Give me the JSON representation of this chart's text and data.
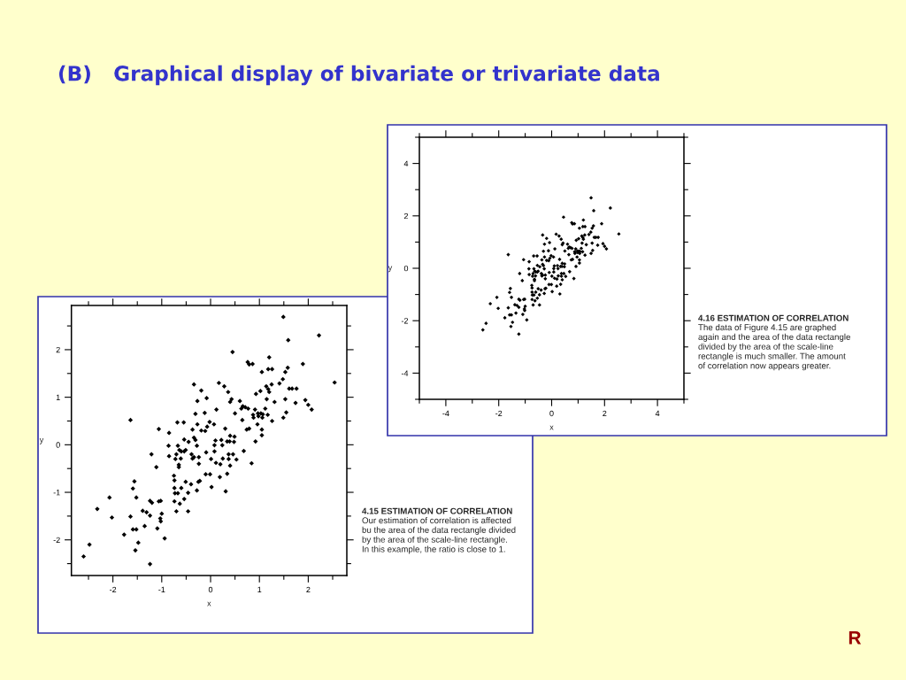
{
  "chart_data": [
    {
      "type": "scatter",
      "title": "(B)   Graphical display of bivariate or trivariate data",
      "xlabel": "x",
      "ylabel": "y",
      "color": "#000000",
      "marker": "diamond",
      "x": [
        -0.34,
        -0.19,
        -0.27,
        -0.08,
        -0.31,
        -0.12,
        -1.64,
        -1.06,
        -0.85,
        -0.68,
        -0.55,
        -0.27,
        -0.02,
        0.07,
        -0.07,
        -0.19,
        -0.11,
        -0.37,
        -0.54,
        -0.45,
        -0.34,
        -0.31,
        -0.86,
        -0.67,
        0.12,
        0.1,
        1.49,
        2.22,
        1.59,
        0.45,
        1.2,
        0.76,
        0.79,
        0.86,
        1.89,
        1.18,
        1.26,
        1.58,
        1.05,
        1.53,
        1.48,
        1.41,
        2.54,
        0.17,
        0.28,
        0.36,
        1.25,
        1.14,
        1.18,
        1.2,
        1.02,
        0.93,
        1.61,
        1.67,
        1.76,
        0.43,
        0.4,
        0.6,
        1.15,
        1.31,
        1.53,
        1.74,
        1.94,
        2.0,
        2.07,
        0.66,
        0.71,
        0.63,
        0.77,
        0.91,
        1.12,
        0.5,
        0.97,
        1.03,
        1.07,
        1.17,
        0.87,
        1.55,
        0.88,
        0.98,
        1.06,
        1.49,
        0.65,
        1.26,
        0.96,
        0.74,
        0.79,
        0.3,
        1.05,
        0.4,
        0.49,
        1.05,
        0.22,
        0.34,
        0.39,
        0.48,
        0.92,
        0.08,
        0.24,
        -0.28,
        -0.64,
        -0.6,
        -0.54,
        -0.51,
        -0.7,
        -0.72,
        -0.61,
        -0.39,
        -0.34,
        -0.37,
        -0.24,
        -0.09,
        0.01,
        -0.85,
        -1.21,
        -1.11,
        -0.65,
        -0.65,
        -0.24,
        -0.1,
        -0.01,
        -0.75,
        -0.74,
        -0.51,
        -0.4,
        -0.25,
        -0.22,
        0.02,
        -0.74,
        -0.6,
        -0.73,
        -0.67,
        -0.46,
        -0.28,
        -0.54,
        -0.74,
        -0.63,
        -0.7,
        -0.46,
        -1.56,
        -1.59,
        -1.52,
        -2.07,
        -2.32,
        -2.02,
        -1.64,
        -1.39,
        -1.31,
        -1.24,
        -1.2,
        -1.06,
        -1.02,
        -1.24,
        -1.0,
        -1.03,
        -1.02,
        -1.35,
        -1.09,
        -1.59,
        -1.52,
        -1.77,
        -0.94,
        -1.48,
        -2.48,
        -1.54,
        -2.6,
        -1.24,
        0.08,
        0.11,
        0.2,
        0.25,
        0.37,
        0.37,
        0.46,
        0.53,
        0.4,
        0.68,
        0.84,
        0.19,
        0.34,
        0.31
      ],
      "values": [
        1.27,
        1.14,
        0.92,
        0.98,
        0.65,
        0.67,
        0.52,
        0.33,
        0.25,
        0.47,
        0.47,
        0.43,
        0.48,
        0.43,
        0.38,
        0.3,
        0.29,
        0.32,
        0.11,
        0.06,
        0.15,
        0.1,
        -0.02,
        -0.02,
        0.74,
        0.09,
        2.69,
        2.3,
        2.2,
        1.95,
        1.84,
        1.74,
        1.69,
        1.7,
        1.7,
        1.59,
        1.59,
        1.62,
        1.53,
        1.53,
        1.38,
        1.29,
        1.31,
        1.3,
        1.23,
        1.11,
        1.27,
        1.23,
        1.17,
        1.11,
        1.13,
        1.07,
        1.18,
        1.18,
        1.18,
        0.96,
        0.9,
        0.92,
        0.96,
        0.9,
        0.96,
        0.88,
        0.94,
        0.84,
        0.74,
        0.81,
        0.79,
        0.76,
        0.76,
        0.74,
        0.76,
        0.66,
        0.66,
        0.66,
        0.64,
        0.63,
        0.63,
        0.68,
        0.57,
        0.6,
        0.57,
        0.57,
        0.52,
        0.5,
        0.43,
        0.32,
        0.34,
        0.34,
        0.32,
        0.19,
        0.17,
        0.2,
        0.1,
        0.07,
        0.07,
        0.06,
        0.07,
        -0.01,
        -0.01,
        -0.02,
        -0.11,
        -0.14,
        -0.14,
        -0.11,
        -0.2,
        -0.3,
        -0.29,
        -0.2,
        -0.26,
        -0.29,
        -0.26,
        -0.16,
        -0.3,
        -0.24,
        -0.2,
        -0.47,
        -0.42,
        -0.47,
        -0.4,
        -0.62,
        -0.62,
        -0.65,
        -0.75,
        -0.78,
        -0.83,
        -0.78,
        -0.76,
        -0.89,
        -0.91,
        -0.91,
        -1.02,
        -1.02,
        -1.01,
        -0.96,
        -1.14,
        -1.19,
        -1.24,
        -1.4,
        -1.4,
        -0.77,
        -0.92,
        -1.11,
        -1.11,
        -1.35,
        -1.53,
        -1.51,
        -1.39,
        -1.42,
        -1.18,
        -1.22,
        -1.19,
        -1.18,
        -1.49,
        -1.45,
        -1.55,
        -1.61,
        -1.71,
        -1.76,
        -1.78,
        -1.78,
        -1.89,
        -1.97,
        -2.06,
        -2.1,
        -2.22,
        -2.35,
        -2.51,
        -0.14,
        -0.38,
        -0.41,
        -0.29,
        -0.2,
        -0.3,
        -0.2,
        -0.31,
        -0.44,
        -0.13,
        -0.39,
        -0.68,
        -0.61,
        -0.98
      ],
      "xlim": [
        -2.85,
        2.79
      ],
      "ylim": [
        -2.75,
        2.93
      ],
      "xticks": [
        {
          "value": -2.5,
          "label": null
        },
        -2,
        {
          "value": -1.5,
          "label": null
        },
        -1,
        {
          "value": -0.5,
          "label": null
        },
        0,
        {
          "value": 0.5,
          "label": null
        },
        1,
        {
          "value": 1.5,
          "label": null
        },
        2,
        {
          "value": 2.5,
          "label": null
        }
      ],
      "yticks": [
        {
          "value": -2.5,
          "label": null
        },
        -2,
        {
          "value": -1.5,
          "label": null
        },
        -1,
        {
          "value": -0.5,
          "label": null
        },
        0,
        {
          "value": 0.5,
          "label": null
        },
        1,
        {
          "value": 1.5,
          "label": null
        },
        2,
        {
          "value": 2.5,
          "label": null
        }
      ],
      "annotations": [
        "4.15 ESTIMATION OF CORRELATION",
        "Our estimation of correlation is affected\nbu the area of the data rectangle divided\nby the area of the scale-line rectangle.\nIn this example, the ratio is close to 1."
      ]
    },
    {
      "type": "scatter",
      "xlabel": "x",
      "ylabel": "y",
      "color": "#000000",
      "marker": "diamond",
      "x": [
        -0.34,
        -0.19,
        -0.27,
        -0.08,
        -0.31,
        -0.12,
        -1.64,
        -1.06,
        -0.85,
        -0.68,
        -0.55,
        -0.27,
        -0.02,
        0.07,
        -0.07,
        -0.19,
        -0.11,
        -0.37,
        -0.54,
        -0.45,
        -0.34,
        -0.31,
        -0.86,
        -0.67,
        0.12,
        0.1,
        1.49,
        2.22,
        1.59,
        0.45,
        1.2,
        0.76,
        0.79,
        0.86,
        1.89,
        1.18,
        1.26,
        1.58,
        1.05,
        1.53,
        1.48,
        1.41,
        2.54,
        0.17,
        0.28,
        0.36,
        1.25,
        1.14,
        1.18,
        1.2,
        1.02,
        0.93,
        1.61,
        1.67,
        1.76,
        0.43,
        0.4,
        0.6,
        1.15,
        1.31,
        1.53,
        1.74,
        1.94,
        2.0,
        2.07,
        0.66,
        0.71,
        0.63,
        0.77,
        0.91,
        1.12,
        0.5,
        0.97,
        1.03,
        1.07,
        1.17,
        0.87,
        1.55,
        0.88,
        0.98,
        1.06,
        1.49,
        0.65,
        1.26,
        0.96,
        0.74,
        0.79,
        0.3,
        1.05,
        0.4,
        0.49,
        1.05,
        0.22,
        0.34,
        0.39,
        0.48,
        0.92,
        0.08,
        0.24,
        -0.28,
        -0.64,
        -0.6,
        -0.54,
        -0.51,
        -0.7,
        -0.72,
        -0.61,
        -0.39,
        -0.34,
        -0.37,
        -0.24,
        -0.09,
        0.01,
        -0.85,
        -1.21,
        -1.11,
        -0.65,
        -0.65,
        -0.24,
        -0.1,
        -0.01,
        -0.75,
        -0.74,
        -0.51,
        -0.4,
        -0.25,
        -0.22,
        0.02,
        -0.74,
        -0.6,
        -0.73,
        -0.67,
        -0.46,
        -0.28,
        -0.54,
        -0.74,
        -0.63,
        -0.7,
        -0.46,
        -1.56,
        -1.59,
        -1.52,
        -2.07,
        -2.32,
        -2.02,
        -1.64,
        -1.39,
        -1.31,
        -1.24,
        -1.2,
        -1.06,
        -1.02,
        -1.24,
        -1.0,
        -1.03,
        -1.02,
        -1.35,
        -1.09,
        -1.59,
        -1.52,
        -1.77,
        -0.94,
        -1.48,
        -2.48,
        -1.54,
        -2.6,
        -1.24,
        0.08,
        0.11,
        0.2,
        0.25,
        0.37,
        0.37,
        0.46,
        0.53,
        0.4,
        0.68,
        0.84,
        0.19,
        0.34,
        0.31
      ],
      "values": [
        1.27,
        1.14,
        0.92,
        0.98,
        0.65,
        0.67,
        0.52,
        0.33,
        0.25,
        0.47,
        0.47,
        0.43,
        0.48,
        0.43,
        0.38,
        0.3,
        0.29,
        0.32,
        0.11,
        0.06,
        0.15,
        0.1,
        -0.02,
        -0.02,
        0.74,
        0.09,
        2.69,
        2.3,
        2.2,
        1.95,
        1.84,
        1.74,
        1.69,
        1.7,
        1.7,
        1.59,
        1.59,
        1.62,
        1.53,
        1.53,
        1.38,
        1.29,
        1.31,
        1.3,
        1.23,
        1.11,
        1.27,
        1.23,
        1.17,
        1.11,
        1.13,
        1.07,
        1.18,
        1.18,
        1.18,
        0.96,
        0.9,
        0.92,
        0.96,
        0.9,
        0.96,
        0.88,
        0.94,
        0.84,
        0.74,
        0.81,
        0.79,
        0.76,
        0.76,
        0.74,
        0.76,
        0.66,
        0.66,
        0.66,
        0.64,
        0.63,
        0.63,
        0.68,
        0.57,
        0.6,
        0.57,
        0.57,
        0.52,
        0.5,
        0.43,
        0.32,
        0.34,
        0.34,
        0.32,
        0.19,
        0.17,
        0.2,
        0.1,
        0.07,
        0.07,
        0.06,
        0.07,
        -0.01,
        -0.01,
        -0.02,
        -0.11,
        -0.14,
        -0.14,
        -0.11,
        -0.2,
        -0.3,
        -0.29,
        -0.2,
        -0.26,
        -0.29,
        -0.26,
        -0.16,
        -0.3,
        -0.24,
        -0.2,
        -0.47,
        -0.42,
        -0.47,
        -0.4,
        -0.62,
        -0.62,
        -0.65,
        -0.75,
        -0.78,
        -0.83,
        -0.78,
        -0.76,
        -0.89,
        -0.91,
        -0.91,
        -1.02,
        -1.02,
        -1.01,
        -0.96,
        -1.14,
        -1.19,
        -1.24,
        -1.4,
        -1.4,
        -0.77,
        -0.92,
        -1.11,
        -1.11,
        -1.35,
        -1.53,
        -1.51,
        -1.39,
        -1.42,
        -1.18,
        -1.22,
        -1.19,
        -1.18,
        -1.49,
        -1.45,
        -1.55,
        -1.61,
        -1.71,
        -1.76,
        -1.78,
        -1.78,
        -1.89,
        -1.97,
        -2.06,
        -2.1,
        -2.22,
        -2.35,
        -2.51,
        -0.14,
        -0.38,
        -0.41,
        -0.29,
        -0.2,
        -0.3,
        -0.2,
        -0.31,
        -0.44,
        -0.13,
        -0.39,
        -0.68,
        -0.61,
        -0.98
      ],
      "xlim": [
        -5,
        5
      ],
      "ylim": [
        -5,
        5
      ],
      "xticks": [
        {
          "value": -5,
          "label": null
        },
        -4,
        {
          "value": -3,
          "label": null
        },
        -2,
        {
          "value": -1,
          "label": null
        },
        0,
        {
          "value": 1,
          "label": null
        },
        2,
        {
          "value": 3,
          "label": null
        },
        4,
        {
          "value": 5,
          "label": null
        }
      ],
      "yticks": [
        {
          "value": -5,
          "label": null
        },
        -4,
        {
          "value": -3,
          "label": null
        },
        -2,
        {
          "value": -1,
          "label": null
        },
        0,
        {
          "value": 1,
          "label": null
        },
        2,
        {
          "value": 3,
          "label": null
        },
        4,
        {
          "value": 5,
          "label": null
        }
      ],
      "annotations": [
        "4.16 ESTIMATION OF CORRELATION",
        "The data of Figure 4.15 are graphed\nagain and the area of the data rectangle\ndivided by the area of the scale-line\nrectangle is much smaller. The amount\nof correlation now appears greater.",
        "R"
      ]
    }
  ]
}
